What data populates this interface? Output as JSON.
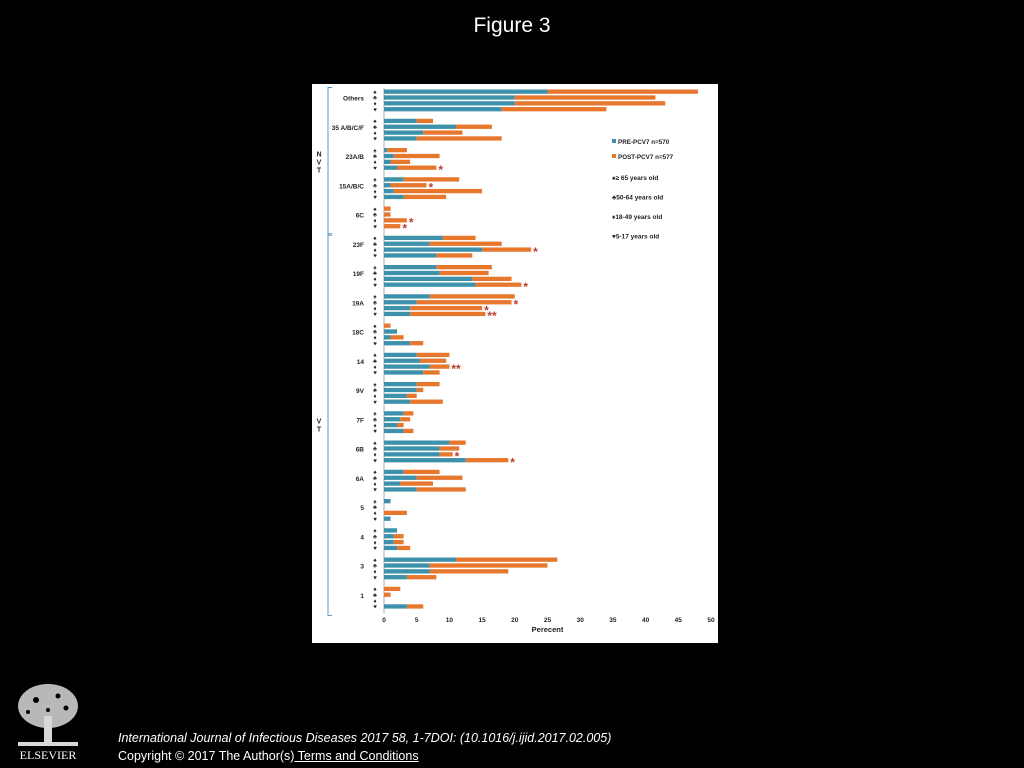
{
  "slide": {
    "title": "Figure 3"
  },
  "footer": {
    "citation": "International Journal of Infectious Diseases 2017 58, 1-7DOI: (10.1016/j.ijid.2017.02.005)",
    "copyright": "Copyright © 2017 The Author(s)",
    "terms_link": " Terms and Conditions",
    "logo_text": "ELSEVIER"
  },
  "colors": {
    "pre": "#3d91ab",
    "post": "#e8772e",
    "star": "#c0392b",
    "bracket": "#4a90c8"
  },
  "chart_data": {
    "type": "bar",
    "orientation": "horizontal",
    "stacked": true,
    "xlabel": "Perecent",
    "xlim": [
      0,
      50
    ],
    "xticks": [
      0,
      5,
      10,
      15,
      20,
      25,
      30,
      35,
      40,
      45,
      50
    ],
    "group_labels": [
      {
        "label": "N\nV\nT",
        "serotypes": [
          "Others",
          "35 A/B/C/F",
          "23A/B",
          "15A/B/C",
          "6C"
        ]
      },
      {
        "label": "V\nT",
        "serotypes": [
          "23F",
          "19F",
          "19A",
          "18C",
          "14",
          "9V",
          "7F",
          "6B",
          "6A",
          "5",
          "4",
          "3",
          "1"
        ]
      }
    ],
    "legend": {
      "position": "top-right",
      "series": [
        {
          "name": "PRE-PCV7  n=570",
          "key": "pre"
        },
        {
          "name": "POST-PCV7  n=577",
          "key": "post"
        }
      ],
      "age_groups": [
        {
          "symbol": "♠",
          "label": "≥ 65 years old"
        },
        {
          "symbol": "♣",
          "label": "50-64 years old"
        },
        {
          "symbol": "♦",
          "label": "18-49 years old"
        },
        {
          "symbol": "♥",
          "label": "5-17 years old"
        }
      ]
    },
    "row_symbols": [
      "♠",
      "♣",
      "♦",
      "♥"
    ],
    "categories": [
      {
        "serotype": "Others",
        "pre": [
          25,
          20,
          20,
          18
        ],
        "post": [
          23,
          21.5,
          23,
          16
        ],
        "stars": [
          "",
          "",
          "",
          ""
        ]
      },
      {
        "serotype": "35 A/B/C/F",
        "pre": [
          5,
          11,
          6,
          5
        ],
        "post": [
          2.5,
          5.5,
          6,
          13
        ],
        "stars": [
          "",
          "",
          "",
          ""
        ]
      },
      {
        "serotype": "23A/B",
        "pre": [
          0.5,
          1.5,
          1,
          2
        ],
        "post": [
          3,
          7,
          3,
          6
        ],
        "stars": [
          "",
          "",
          "",
          "*"
        ]
      },
      {
        "serotype": "15A/B/C",
        "pre": [
          3,
          1,
          1.5,
          3
        ],
        "post": [
          8.5,
          5.5,
          13.5,
          6.5
        ],
        "stars": [
          "",
          "*",
          "",
          ""
        ]
      },
      {
        "serotype": "6C",
        "pre": [
          0,
          0,
          0,
          0
        ],
        "post": [
          1,
          1,
          3.5,
          2.5
        ],
        "stars": [
          "",
          "",
          "*",
          "*"
        ]
      },
      {
        "serotype": "23F",
        "pre": [
          9,
          7,
          15,
          8
        ],
        "post": [
          5,
          11,
          7.5,
          5.5
        ],
        "stars": [
          "",
          "",
          "*",
          ""
        ]
      },
      {
        "serotype": "19F",
        "pre": [
          8,
          8.5,
          13.5,
          14
        ],
        "post": [
          8.5,
          7.5,
          6,
          7
        ],
        "stars": [
          "",
          "",
          "",
          "*"
        ]
      },
      {
        "serotype": "19A",
        "pre": [
          7,
          5,
          4,
          4
        ],
        "post": [
          13,
          14.5,
          11,
          11.5
        ],
        "stars": [
          "",
          "*",
          "*",
          "**"
        ]
      },
      {
        "serotype": "18C",
        "pre": [
          0,
          2,
          1,
          4
        ],
        "post": [
          1,
          0,
          2,
          2
        ],
        "stars": [
          "",
          "",
          "",
          ""
        ]
      },
      {
        "serotype": "14",
        "pre": [
          5,
          5.5,
          7,
          6
        ],
        "post": [
          5,
          4,
          3,
          2.5
        ],
        "stars": [
          "",
          "",
          "**",
          ""
        ]
      },
      {
        "serotype": "9V",
        "pre": [
          5,
          5,
          3.5,
          4
        ],
        "post": [
          3.5,
          1,
          1.5,
          5
        ],
        "stars": [
          "",
          "",
          "",
          ""
        ]
      },
      {
        "serotype": "7F",
        "pre": [
          3,
          2.5,
          2,
          3
        ],
        "post": [
          1.5,
          1.5,
          1,
          1.5
        ],
        "stars": [
          "",
          "",
          "",
          ""
        ]
      },
      {
        "serotype": "6B",
        "pre": [
          10,
          8.5,
          8.5,
          12.5
        ],
        "post": [
          2.5,
          3,
          2,
          6.5
        ],
        "stars": [
          "",
          "",
          "*",
          "*"
        ]
      },
      {
        "serotype": "6A",
        "pre": [
          3,
          5,
          2.5,
          5
        ],
        "post": [
          5.5,
          7,
          5,
          7.5
        ],
        "stars": [
          "",
          "",
          "",
          ""
        ]
      },
      {
        "serotype": "5",
        "pre": [
          1,
          0,
          0,
          1
        ],
        "post": [
          0,
          0,
          3.5,
          0
        ],
        "stars": [
          "",
          "",
          "",
          ""
        ]
      },
      {
        "serotype": "4",
        "pre": [
          2,
          1.5,
          1.5,
          2
        ],
        "post": [
          0,
          1.5,
          1.5,
          2
        ],
        "stars": [
          "",
          "",
          "",
          ""
        ]
      },
      {
        "serotype": "3",
        "pre": [
          11,
          7,
          7,
          3.5
        ],
        "post": [
          15.5,
          18,
          12,
          4.5
        ],
        "stars": [
          "",
          "",
          "",
          ""
        ]
      },
      {
        "serotype": "1",
        "pre": [
          0,
          0,
          0,
          3.5
        ],
        "post": [
          2.5,
          1,
          0,
          2.5
        ],
        "stars": [
          "",
          "",
          "",
          ""
        ]
      }
    ]
  }
}
